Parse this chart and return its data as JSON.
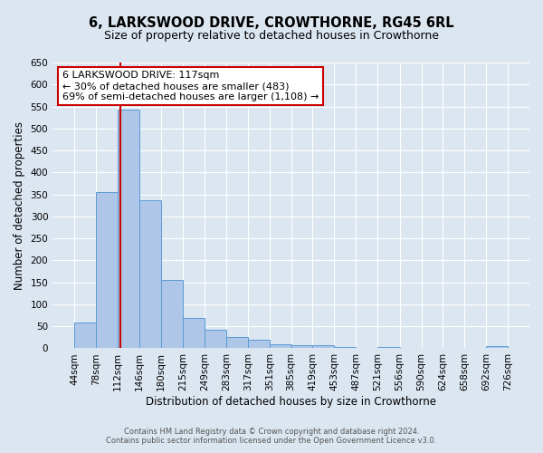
{
  "title": "6, LARKSWOOD DRIVE, CROWTHORNE, RG45 6RL",
  "subtitle": "Size of property relative to detached houses in Crowthorne",
  "xlabel": "Distribution of detached houses by size in Crowthorne",
  "ylabel": "Number of detached properties",
  "footer_line1": "Contains HM Land Registry data © Crown copyright and database right 2024.",
  "footer_line2": "Contains public sector information licensed under the Open Government Licence v3.0.",
  "bin_edges": [
    44,
    78,
    112,
    146,
    180,
    215,
    249,
    283,
    317,
    351,
    385,
    419,
    453,
    487,
    521,
    556,
    590,
    624,
    658,
    692,
    726
  ],
  "bin_counts": [
    58,
    355,
    542,
    337,
    155,
    68,
    42,
    25,
    20,
    10,
    8,
    8,
    2,
    0,
    3,
    0,
    0,
    0,
    0,
    5
  ],
  "bar_color": "#aec6e8",
  "bar_edge_color": "#5b9bd5",
  "property_size": 117,
  "vline_color": "#cc0000",
  "annotation_line1": "6 LARKSWOOD DRIVE: 117sqm",
  "annotation_line2": "← 30% of detached houses are smaller (483)",
  "annotation_line3": "69% of semi-detached houses are larger (1,108) →",
  "annotation_box_color": "#ffffff",
  "annotation_box_edge": "#cc0000",
  "ylim": [
    0,
    650
  ],
  "yticks": [
    0,
    50,
    100,
    150,
    200,
    250,
    300,
    350,
    400,
    450,
    500,
    550,
    600,
    650
  ],
  "bg_color": "#dce6f1",
  "plot_bg_color": "#dce6f1",
  "grid_color": "#ffffff",
  "tick_label_fontsize": 7.5,
  "axis_label_fontsize": 8.5,
  "title_fontsize": 10.5,
  "subtitle_fontsize": 9,
  "annotation_fontsize": 8,
  "footer_fontsize": 6
}
